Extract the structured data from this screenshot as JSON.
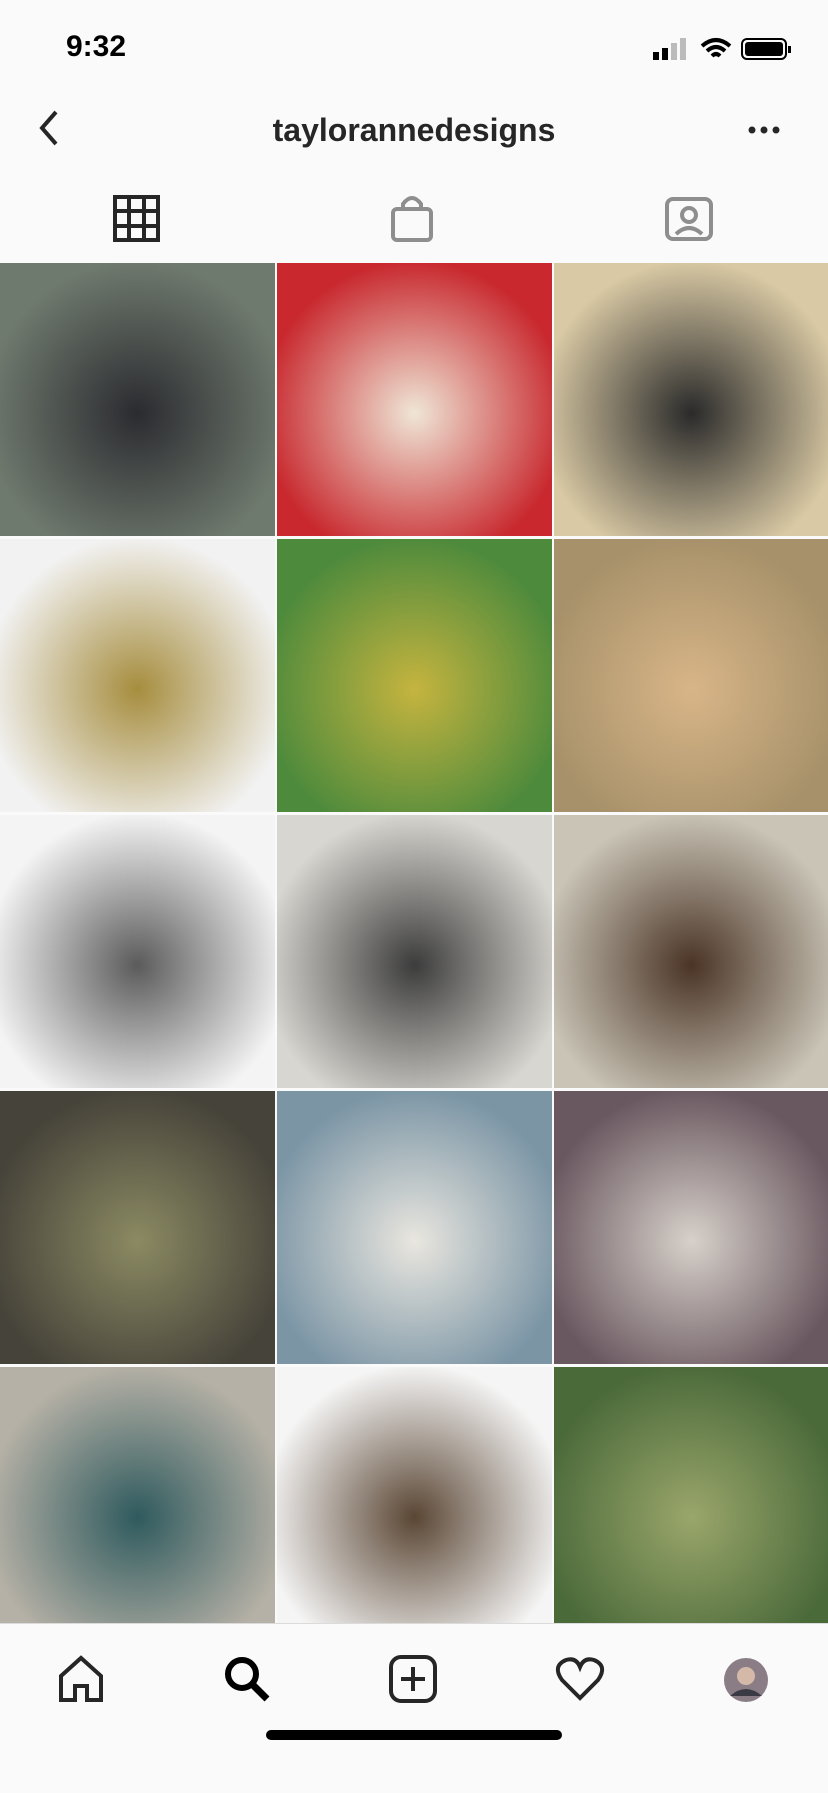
{
  "status_bar": {
    "time": "9:32"
  },
  "header": {
    "title": "taylorannedesigns"
  }
}
